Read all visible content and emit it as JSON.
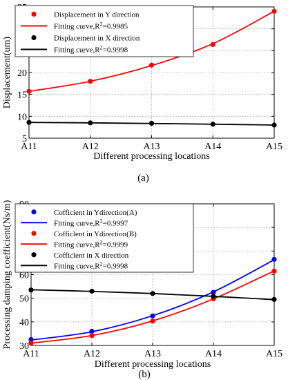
{
  "chart_data": [
    {
      "type": "line",
      "categories": [
        "A11",
        "A12",
        "A13",
        "A14",
        "A15"
      ],
      "ylim": [
        5,
        35
      ],
      "yticks": [
        5,
        10,
        15,
        20,
        25,
        30,
        35
      ],
      "ylabel": "Displacement(um)",
      "xlabel": "Different processing locations",
      "caption": "(a)",
      "grid": true,
      "legend_position": "top-left",
      "series": [
        {
          "name": "Displacement in Y direction",
          "kind": "points",
          "color": "#ff0000",
          "values": [
            15.7,
            18.0,
            21.7,
            26.4,
            34.0
          ]
        },
        {
          "name": "Fitting curve,R²=0.9985",
          "legend_main": "Fitting curve,R",
          "legend_sup": "2",
          "legend_rest": "=0.9985",
          "kind": "curve",
          "color": "#ff0000",
          "values": [
            15.7,
            18.0,
            21.6,
            26.6,
            34.0
          ]
        },
        {
          "name": "Displacement in X direction",
          "kind": "points",
          "color": "#000000",
          "values": [
            8.6,
            8.5,
            8.4,
            8.2,
            8.0
          ]
        },
        {
          "name": "Fitting curve,R²=0.9998",
          "legend_main": "Fitting curve,R",
          "legend_sup": "2",
          "legend_rest": "=0.9998",
          "kind": "curve",
          "color": "#000000",
          "values": [
            8.6,
            8.5,
            8.35,
            8.2,
            8.0
          ]
        }
      ]
    },
    {
      "type": "line",
      "categories": [
        "A11",
        "A12",
        "A13",
        "A14",
        "A15"
      ],
      "ylim": [
        30,
        90
      ],
      "yticks": [
        30,
        40,
        50,
        60,
        70,
        80,
        90
      ],
      "ylabel": "Processing damping coefficient(Ns/m)",
      "xlabel": "Different processing locations",
      "caption": "(b)",
      "grid": true,
      "legend_position": "top-left",
      "series": [
        {
          "name": "Cofficient in Ydirection(A)",
          "kind": "points",
          "color": "#0000ff",
          "values": [
            32.5,
            36.0,
            42.5,
            52.5,
            66.5
          ]
        },
        {
          "name": "Fitting curve,R²=0.9997",
          "legend_main": "Fitting curve,R",
          "legend_sup": "2",
          "legend_rest": "=0.9997",
          "kind": "curve",
          "color": "#0000ff",
          "values": [
            32.3,
            35.8,
            42.6,
            52.7,
            66.3
          ]
        },
        {
          "name": "Cofficlent in Ydirection(B)",
          "kind": "points",
          "color": "#ff0000",
          "values": [
            31.0,
            34.2,
            40.3,
            49.8,
            61.5
          ]
        },
        {
          "name": "Fitting curve,R²=0.9999",
          "legend_main": "Fitting curve,R",
          "legend_sup": "2",
          "legend_rest": "=0.9999",
          "kind": "curve",
          "color": "#ff0000",
          "values": [
            31.0,
            34.2,
            40.4,
            49.7,
            61.6
          ]
        },
        {
          "name": "Cofficlent in X direction",
          "kind": "points",
          "color": "#000000",
          "values": [
            53.5,
            53.0,
            52.0,
            50.8,
            49.5
          ]
        },
        {
          "name": "Fitting curve,R²=0.9998",
          "legend_main": "Fitting curve,R",
          "legend_sup": "2",
          "legend_rest": "=0.9998",
          "kind": "curve",
          "color": "#000000",
          "values": [
            53.6,
            52.9,
            52.0,
            50.8,
            49.4
          ]
        }
      ]
    }
  ]
}
